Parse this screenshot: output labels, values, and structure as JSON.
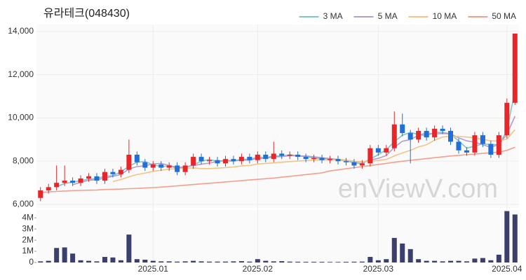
{
  "chart_data": [
    {
      "type": "candlestick",
      "title": "유라테크(048430)",
      "watermark": "enViewV.com",
      "ylim": [
        5840,
        14320
      ],
      "yticks": [
        {
          "value": 6000,
          "label": "6,000"
        },
        {
          "value": 8000,
          "label": "8,000"
        },
        {
          "value": 10000,
          "label": "10,000"
        },
        {
          "value": 12000,
          "label": "12,000"
        },
        {
          "value": 14000,
          "label": "14,000"
        }
      ],
      "grid": true,
      "legend": "top-right",
      "up_color": "#e8262a",
      "down_color": "#1f6fd6",
      "open": [
        6300,
        6650,
        6800,
        7000,
        7100,
        7000,
        7200,
        7300,
        7100,
        7500,
        7400,
        7600,
        8300,
        7950,
        7700,
        7850,
        7700,
        7800,
        7500,
        7800,
        8200,
        8000,
        8050,
        7900,
        8100,
        8000,
        8200,
        8050,
        8300,
        8100,
        8350,
        8250,
        8300,
        8200,
        8100,
        8150,
        8050,
        8100,
        8000,
        7950,
        7800,
        7900,
        8600,
        8400,
        8600,
        9700,
        9300,
        9000,
        9400,
        9100,
        9500,
        9400,
        8900,
        8500,
        8400,
        9200,
        8800,
        8300,
        9200,
        10700
      ],
      "high": [
        6800,
        6950,
        7800,
        7800,
        7250,
        7350,
        7450,
        7450,
        7650,
        7650,
        7750,
        9000,
        8450,
        8100,
        8000,
        8000,
        7950,
        7950,
        7950,
        8350,
        8350,
        8200,
        8200,
        8250,
        8250,
        8350,
        8350,
        8450,
        8450,
        8900,
        8500,
        8450,
        8450,
        8350,
        8300,
        8300,
        8250,
        8250,
        8150,
        8100,
        8050,
        8750,
        8750,
        8750,
        10300,
        10200,
        9450,
        9550,
        9550,
        9650,
        9650,
        9550,
        9050,
        8650,
        9350,
        9350,
        8950,
        9350,
        10900,
        13900
      ],
      "low": [
        6150,
        6500,
        6650,
        6850,
        6850,
        6850,
        7050,
        6950,
        6950,
        7250,
        7250,
        7450,
        7800,
        7550,
        7550,
        7550,
        7550,
        7350,
        7350,
        7650,
        7850,
        7850,
        7750,
        7750,
        7850,
        7850,
        7900,
        7900,
        7950,
        7950,
        8100,
        8100,
        8050,
        7950,
        7950,
        7900,
        7900,
        7850,
        7800,
        7650,
        7650,
        7750,
        8250,
        8250,
        8450,
        9150,
        7900,
        8850,
        8950,
        8950,
        9250,
        8750,
        8350,
        8250,
        8250,
        8650,
        8150,
        8150,
        9050,
        10600
      ],
      "close": [
        6650,
        6800,
        7000,
        7100,
        7000,
        7200,
        7300,
        7100,
        7500,
        7400,
        7600,
        8300,
        7950,
        7700,
        7850,
        7700,
        7800,
        7500,
        7800,
        8200,
        8000,
        8050,
        7900,
        8100,
        8000,
        8200,
        8050,
        8300,
        8100,
        8350,
        8250,
        8300,
        8200,
        8100,
        8150,
        8050,
        8100,
        8000,
        7950,
        7800,
        7900,
        8600,
        8400,
        8600,
        9700,
        9300,
        9000,
        9400,
        9100,
        9500,
        9400,
        8900,
        8500,
        8400,
        9200,
        8800,
        8300,
        9200,
        10700,
        13900
      ],
      "series": [
        {
          "name": "3 MA",
          "color": "#7ec8c8",
          "values": [
            null,
            null,
            6817,
            6967,
            7033,
            7100,
            7167,
            7200,
            7300,
            7333,
            7500,
            7767,
            7950,
            7983,
            7833,
            7750,
            7783,
            7667,
            7700,
            7833,
            8000,
            8083,
            7983,
            8017,
            8000,
            8100,
            8083,
            8183,
            8150,
            8250,
            8233,
            8300,
            8250,
            8200,
            8150,
            8100,
            8100,
            8050,
            8017,
            7917,
            7883,
            8100,
            8300,
            8533,
            8900,
            9200,
            9333,
            9233,
            9167,
            9333,
            9333,
            9267,
            8933,
            8600,
            8700,
            8800,
            8767,
            8767,
            9400,
            11267
          ]
        },
        {
          "name": "5 MA",
          "color": "#b49ccb",
          "values": [
            null,
            null,
            null,
            null,
            6910,
            7020,
            7120,
            7140,
            7220,
            7300,
            7380,
            7640,
            7750,
            7790,
            7880,
            7900,
            7800,
            7710,
            7730,
            7800,
            7860,
            7910,
            7990,
            8050,
            8010,
            8050,
            8050,
            8130,
            8130,
            8200,
            8210,
            8260,
            8240,
            8240,
            8200,
            8160,
            8120,
            8080,
            8050,
            7980,
            7950,
            8050,
            8130,
            8260,
            8640,
            8920,
            9000,
            9200,
            9300,
            9260,
            9280,
            9260,
            9080,
            8940,
            8880,
            8760,
            8640,
            8780,
            9240,
            10080
          ]
        },
        {
          "name": "10 MA",
          "color": "#f2c487",
          "values": [
            null,
            null,
            null,
            null,
            null,
            null,
            null,
            null,
            null,
            7060,
            7150,
            7280,
            7380,
            7450,
            7530,
            7580,
            7630,
            7650,
            7680,
            7690,
            7660,
            7660,
            7680,
            7700,
            7730,
            7780,
            7800,
            7870,
            7900,
            7920,
            7950,
            7980,
            8010,
            8030,
            8050,
            8060,
            8070,
            8060,
            8050,
            8000,
            7970,
            8000,
            8030,
            8080,
            8240,
            8380,
            8500,
            8660,
            8760,
            8970,
            9120,
            9150,
            9140,
            9120,
            9070,
            9010,
            8940,
            8930,
            9020,
            9460
          ]
        },
        {
          "name": "50 MA",
          "color": "#f2a08e",
          "values": [
            6550,
            6580,
            6600,
            6620,
            6640,
            6650,
            6660,
            6670,
            6690,
            6700,
            6710,
            6730,
            6740,
            6760,
            6780,
            6800,
            6830,
            6860,
            6890,
            6920,
            6950,
            6980,
            7010,
            7040,
            7070,
            7100,
            7130,
            7160,
            7190,
            7220,
            7260,
            7300,
            7340,
            7380,
            7420,
            7460,
            7550,
            7600,
            7650,
            7700,
            7750,
            7800,
            7850,
            7900,
            7950,
            8000,
            8040,
            8080,
            8120,
            8160,
            8200,
            8240,
            8270,
            8300,
            8330,
            8360,
            8390,
            8420,
            8500,
            8650
          ]
        }
      ]
    },
    {
      "type": "bar",
      "color": "#3b3f6c",
      "categories": [
        null,
        null,
        null,
        null,
        null,
        null,
        null,
        null,
        null,
        null,
        null,
        null,
        null,
        null,
        "2025.01",
        null,
        null,
        null,
        null,
        null,
        null,
        null,
        null,
        null,
        null,
        null,
        null,
        "2025.02",
        null,
        null,
        null,
        null,
        null,
        null,
        null,
        null,
        null,
        null,
        null,
        null,
        null,
        null,
        "2025.03",
        null,
        null,
        null,
        null,
        null,
        null,
        null,
        null,
        null,
        null,
        null,
        null,
        null,
        null,
        null,
        "2025.04",
        null
      ],
      "values": [
        100000,
        150000,
        1300000,
        1350000,
        800000,
        200000,
        150000,
        100000,
        500000,
        450000,
        200000,
        2500000,
        300000,
        250000,
        150000,
        100000,
        100000,
        80000,
        100000,
        150000,
        100000,
        80000,
        80000,
        80000,
        100000,
        120000,
        80000,
        300000,
        150000,
        100000,
        120000,
        80000,
        70000,
        60000,
        60000,
        60000,
        50000,
        50000,
        60000,
        70000,
        80000,
        500000,
        200000,
        300000,
        2200000,
        1700000,
        1200000,
        300000,
        150000,
        150000,
        100000,
        150000,
        150000,
        100000,
        350000,
        400000,
        200000,
        700000,
        4600000,
        4300000
      ],
      "ylim": [
        0,
        4700000
      ],
      "yticks": [
        {
          "value": 0,
          "label": "0"
        },
        {
          "value": 1000000,
          "label": "1M"
        },
        {
          "value": 2000000,
          "label": "2M"
        },
        {
          "value": 3000000,
          "label": "3M"
        },
        {
          "value": 4000000,
          "label": "4M"
        }
      ]
    }
  ]
}
